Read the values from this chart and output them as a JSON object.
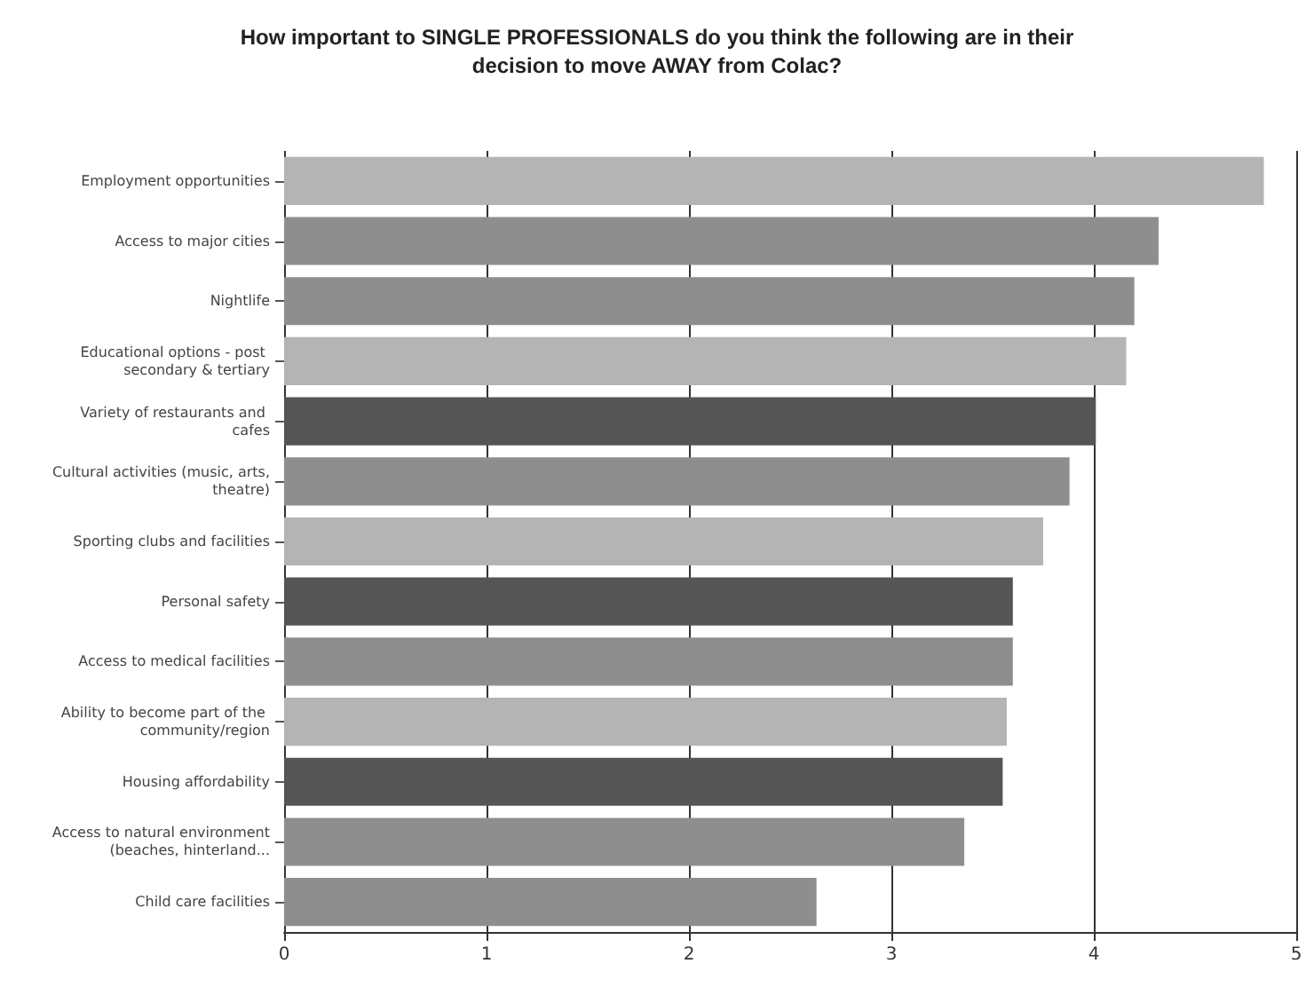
{
  "chart_data": {
    "type": "bar",
    "orientation": "horizontal",
    "title": "How important to SINGLE PROFESSIONALS do you think the following are in their\ndecision to move AWAY from Colac?",
    "categories": [
      "Employment opportunities",
      "Access to major cities",
      "Nightlife",
      "Educational options - post secondary & tertiary",
      "Variety of restaurants and cafes",
      "Cultural activities (music, arts, theatre)",
      "Sporting clubs and facilities",
      "Personal safety",
      "Access to medical facilities",
      "Ability to become part of the community/region",
      "Housing affordability",
      "Access to natural environment (beaches, hinterland...",
      "Child care facilities"
    ],
    "values": [
      4.84,
      4.32,
      4.2,
      4.16,
      4.01,
      3.88,
      3.75,
      3.6,
      3.6,
      3.57,
      3.55,
      3.36,
      2.63
    ],
    "colors": [
      "#b4b4b4",
      "#8e8e8e",
      "#8e8e8e",
      "#b4b4b4",
      "#555555",
      "#8e8e8e",
      "#b4b4b4",
      "#555555",
      "#8e8e8e",
      "#b4b4b4",
      "#555555",
      "#8e8e8e",
      "#8e8e8e"
    ],
    "xlim": [
      0,
      5
    ],
    "xticks": [
      0,
      1,
      2,
      3,
      4,
      5
    ],
    "grid": "x"
  }
}
